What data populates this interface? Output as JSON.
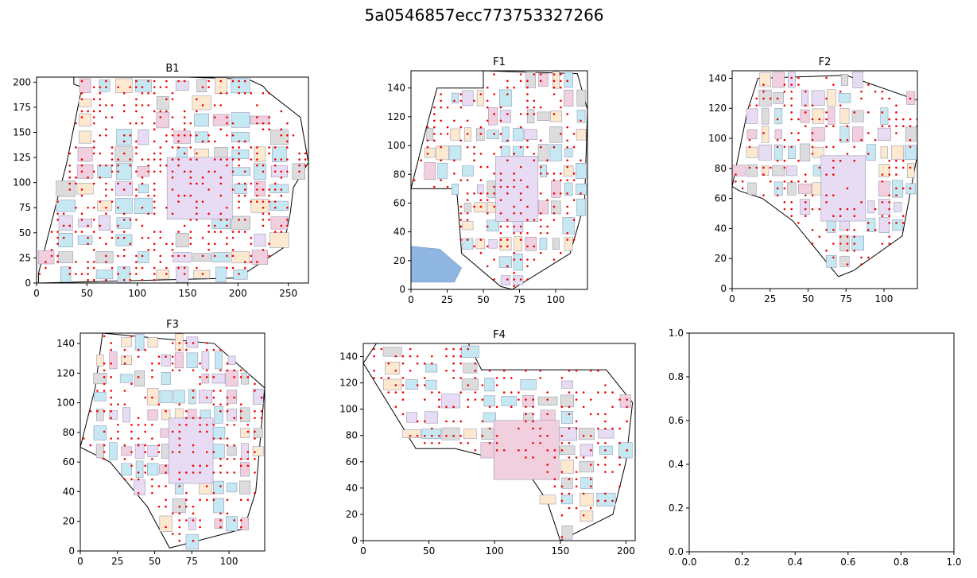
{
  "figure": {
    "title": "5a0546857ecc773753327266"
  },
  "colors": {
    "shop_blue": "#c5e8f2",
    "shop_purple": "#e7dcf4",
    "shop_orange": "#fde9cf",
    "shop_pink": "#f2cfdf",
    "shop_grey": "#dcdcdc",
    "water_blue": "#8fb6e0",
    "sample_point": "#ee0000",
    "outline": "#000000"
  },
  "chart_data": [
    {
      "type": "scatter",
      "title": "B1",
      "xlim": [
        0,
        270
      ],
      "ylim": [
        0,
        205
      ],
      "xticks": [
        "0",
        "50",
        "100",
        "150",
        "200",
        "250"
      ],
      "yticks": [
        "0",
        "25",
        "50",
        "75",
        "100",
        "125",
        "150",
        "175",
        "200"
      ],
      "outline": [
        [
          2,
          10
        ],
        [
          30,
          120
        ],
        [
          45,
          195
        ],
        [
          37,
          198
        ],
        [
          37,
          205
        ],
        [
          150,
          205
        ],
        [
          210,
          203
        ],
        [
          225,
          196
        ],
        [
          230,
          190
        ],
        [
          262,
          165
        ],
        [
          270,
          120
        ],
        [
          255,
          95
        ],
        [
          252,
          70
        ],
        [
          245,
          35
        ],
        [
          200,
          5
        ],
        [
          2,
          0
        ]
      ],
      "point_spacing": 6
    },
    {
      "type": "scatter",
      "title": "F1",
      "xlim": [
        0,
        122
      ],
      "ylim": [
        0,
        152
      ],
      "xticks": [
        "0",
        "25",
        "50",
        "75",
        "100"
      ],
      "yticks": [
        "0",
        "20",
        "40",
        "60",
        "80",
        "100",
        "120",
        "140"
      ],
      "outline": [
        [
          0,
          70
        ],
        [
          10,
          110
        ],
        [
          18,
          140
        ],
        [
          50,
          140
        ],
        [
          50,
          152
        ],
        [
          115,
          150
        ],
        [
          122,
          125
        ],
        [
          120,
          60
        ],
        [
          110,
          25
        ],
        [
          70,
          0
        ],
        [
          62,
          2
        ],
        [
          35,
          25
        ],
        [
          32,
          65
        ],
        [
          30,
          70
        ]
      ],
      "point_spacing": 4.6
    },
    {
      "type": "scatter",
      "title": "F2",
      "xlim": [
        0,
        122
      ],
      "ylim": [
        0,
        145
      ],
      "xticks": [
        "0",
        "25",
        "50",
        "75",
        "100"
      ],
      "yticks": [
        "0",
        "20",
        "40",
        "60",
        "80",
        "100",
        "120",
        "140"
      ],
      "outline": [
        [
          0,
          68
        ],
        [
          10,
          118
        ],
        [
          17,
          140
        ],
        [
          75,
          142
        ],
        [
          123,
          125
        ],
        [
          124,
          100
        ],
        [
          112,
          35
        ],
        [
          80,
          12
        ],
        [
          70,
          8
        ],
        [
          40,
          45
        ],
        [
          20,
          60
        ],
        [
          5,
          65
        ]
      ],
      "point_spacing": 4.6
    },
    {
      "type": "scatter",
      "title": "F3",
      "xlim": [
        0,
        124
      ],
      "ylim": [
        0,
        147
      ],
      "xticks": [
        "0",
        "25",
        "50",
        "75",
        "100"
      ],
      "yticks": [
        "0",
        "20",
        "40",
        "60",
        "80",
        "100",
        "120",
        "140"
      ],
      "outline": [
        [
          0,
          70
        ],
        [
          10,
          110
        ],
        [
          15,
          147
        ],
        [
          90,
          140
        ],
        [
          124,
          110
        ],
        [
          118,
          40
        ],
        [
          110,
          15
        ],
        [
          60,
          2
        ],
        [
          45,
          30
        ],
        [
          20,
          60
        ],
        [
          0,
          70
        ]
      ],
      "point_spacing": 4.6
    },
    {
      "type": "scatter",
      "title": "F4",
      "xlim": [
        0,
        207
      ],
      "ylim": [
        0,
        150
      ],
      "xticks": [
        "0",
        "50",
        "100",
        "150",
        "200"
      ],
      "yticks": [
        "0",
        "20",
        "40",
        "60",
        "80",
        "100",
        "120",
        "140"
      ],
      "outline": [
        [
          0,
          135
        ],
        [
          10,
          150
        ],
        [
          80,
          150
        ],
        [
          90,
          130
        ],
        [
          185,
          130
        ],
        [
          205,
          105
        ],
        [
          200,
          60
        ],
        [
          190,
          20
        ],
        [
          150,
          0
        ],
        [
          140,
          30
        ],
        [
          120,
          60
        ],
        [
          90,
          65
        ],
        [
          70,
          70
        ],
        [
          40,
          70
        ],
        [
          0,
          135
        ]
      ],
      "point_spacing": 5.5
    },
    {
      "type": "scatter",
      "title": "",
      "xlim": [
        0,
        1
      ],
      "ylim": [
        0,
        1
      ],
      "xticks": [
        "0.0",
        "0.2",
        "0.4",
        "0.6",
        "0.8",
        "1.0"
      ],
      "yticks": [
        "0.0",
        "0.2",
        "0.4",
        "0.6",
        "0.8",
        "1.0"
      ],
      "outline": [],
      "point_spacing": 0
    }
  ]
}
